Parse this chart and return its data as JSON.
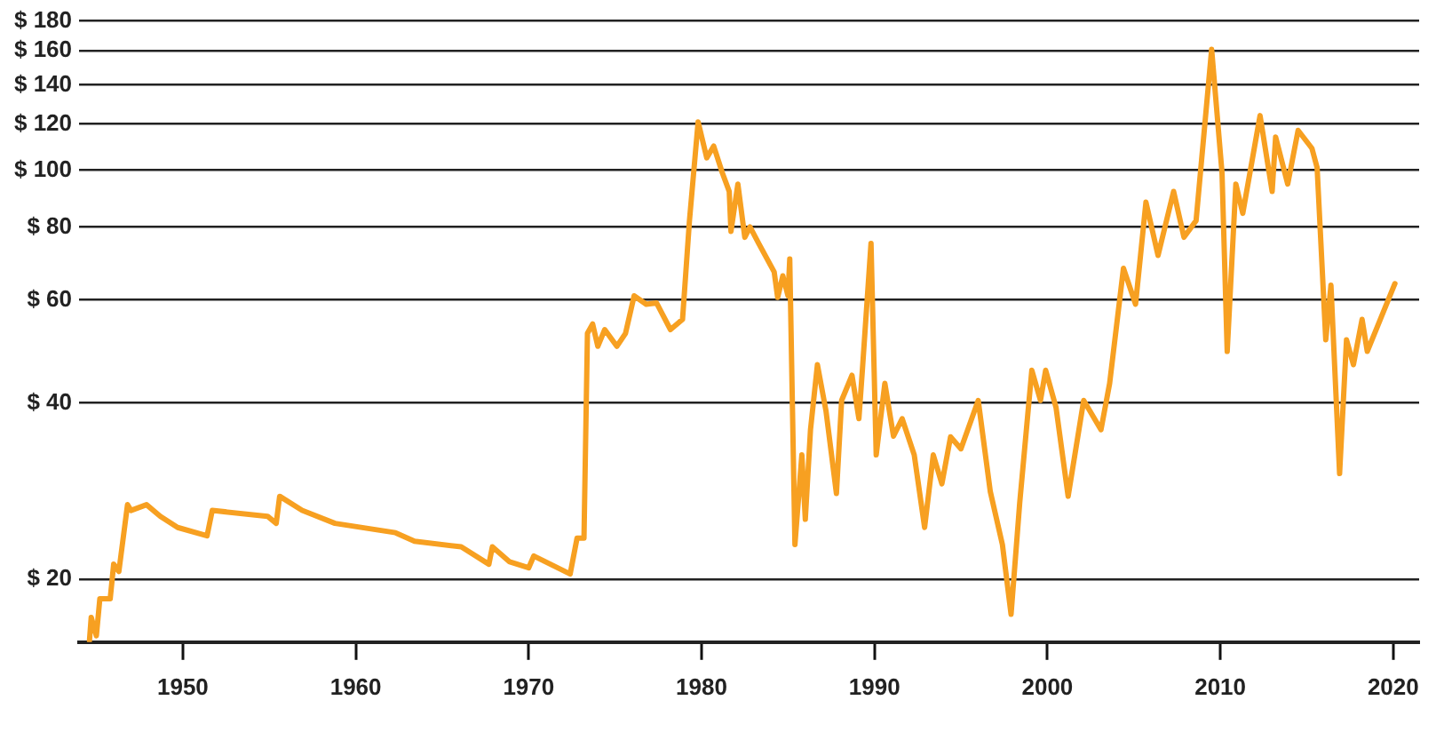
{
  "chart_data": {
    "type": "line",
    "log": "y",
    "grid": "y",
    "marker": "none",
    "line_style": "solid",
    "xlim": [
      1944,
      2021.5
    ],
    "ylim": [
      15.6,
      180
    ],
    "xticks": [
      1950,
      1960,
      1970,
      1980,
      1990,
      2000,
      2010,
      2020
    ],
    "yticks": [
      {
        "value": 20,
        "label": "$ 20"
      },
      {
        "value": 40,
        "label": "$ 40"
      },
      {
        "value": 60,
        "label": "$ 60"
      },
      {
        "value": 80,
        "label": "$ 80"
      },
      {
        "value": 100,
        "label": "$ 100"
      },
      {
        "value": 120,
        "label": "$ 120"
      },
      {
        "value": 140,
        "label": "$ 140"
      },
      {
        "value": 160,
        "label": "$ 160"
      },
      {
        "value": 180,
        "label": "$ 180"
      }
    ],
    "x": [
      1944.6,
      1944.7,
      1945.0,
      1945.2,
      1945.8,
      1946.0,
      1946.3,
      1946.8,
      1947.0,
      1947.9,
      1948.7,
      1949.7,
      1951.4,
      1951.7,
      1954.9,
      1955.4,
      1955.6,
      1956.9,
      1958.8,
      1962.3,
      1963.4,
      1966.1,
      1967.7,
      1967.9,
      1968.9,
      1970.0,
      1970.3,
      1972.4,
      1972.8,
      1973.2,
      1973.4,
      1973.7,
      1974.0,
      1974.4,
      1975.1,
      1975.6,
      1976.1,
      1976.8,
      1977.4,
      1978.2,
      1978.9,
      1979.3,
      1979.8,
      1980.3,
      1980.7,
      1981.2,
      1981.6,
      1981.7,
      1982.1,
      1982.5,
      1982.8,
      1983.3,
      1984.2,
      1984.4,
      1984.7,
      1985.0,
      1985.1,
      1985.4,
      1985.8,
      1986.0,
      1986.3,
      1986.7,
      1987.2,
      1987.8,
      1988.1,
      1988.7,
      1989.1,
      1989.3,
      1989.8,
      1990.1,
      1990.6,
      1991.1,
      1991.6,
      1992.3,
      1992.9,
      1993.4,
      1993.9,
      1994.4,
      1995.0,
      1996.0,
      1996.7,
      1997.4,
      1997.9,
      1998.4,
      1999.1,
      1999.6,
      1999.9,
      2000.5,
      2001.2,
      2002.1,
      2003.1,
      2003.6,
      2004.4,
      2005.1,
      2005.7,
      2006.4,
      2007.3,
      2007.9,
      2008.6,
      2009.5,
      2010.1,
      2010.4,
      2010.9,
      2011.3,
      2012.3,
      2013.0,
      2013.2,
      2013.9,
      2014.5,
      2015.3,
      2015.6,
      2016.1,
      2016.4,
      2016.9,
      2017.3,
      2017.7,
      2018.2,
      2018.5,
      2020.1
    ],
    "series": [
      {
        "color": "#f7a021",
        "values": [
          15.7,
          17.2,
          16,
          18.5,
          18.5,
          21.2,
          20.6,
          26.8,
          26.2,
          26.8,
          25.6,
          24.5,
          23.7,
          26.2,
          25.6,
          24.9,
          27.7,
          26.2,
          24.9,
          24,
          23.2,
          22.7,
          21.2,
          22.7,
          21.4,
          20.9,
          21.9,
          20.4,
          23.5,
          23.5,
          52.6,
          54.6,
          50,
          53.4,
          50,
          52.6,
          61,
          59,
          59.3,
          53.4,
          55.6,
          82,
          121,
          105,
          110,
          99,
          92,
          78.6,
          94.7,
          76.8,
          80,
          75,
          67,
          60.6,
          66,
          61,
          70.5,
          22.9,
          32.6,
          25.3,
          36,
          46.5,
          38.7,
          28,
          40.4,
          44.6,
          37.6,
          45.5,
          75,
          32.6,
          43.2,
          35.1,
          37.6,
          32.6,
          24.5,
          32.6,
          29.1,
          35,
          33.4,
          40.4,
          28.2,
          22.9,
          17.4,
          27,
          45.5,
          40.4,
          45.5,
          39.3,
          27.7,
          40.4,
          36,
          43.2,
          68,
          59,
          88.2,
          71.5,
          92,
          76.8,
          82,
          161,
          99,
          49,
          94.7,
          84.4,
          124,
          92,
          114,
          94.7,
          117,
          109,
          101,
          51.3,
          63.6,
          30.3,
          51.3,
          46.5,
          55.6,
          49,
          64
        ]
      }
    ]
  }
}
